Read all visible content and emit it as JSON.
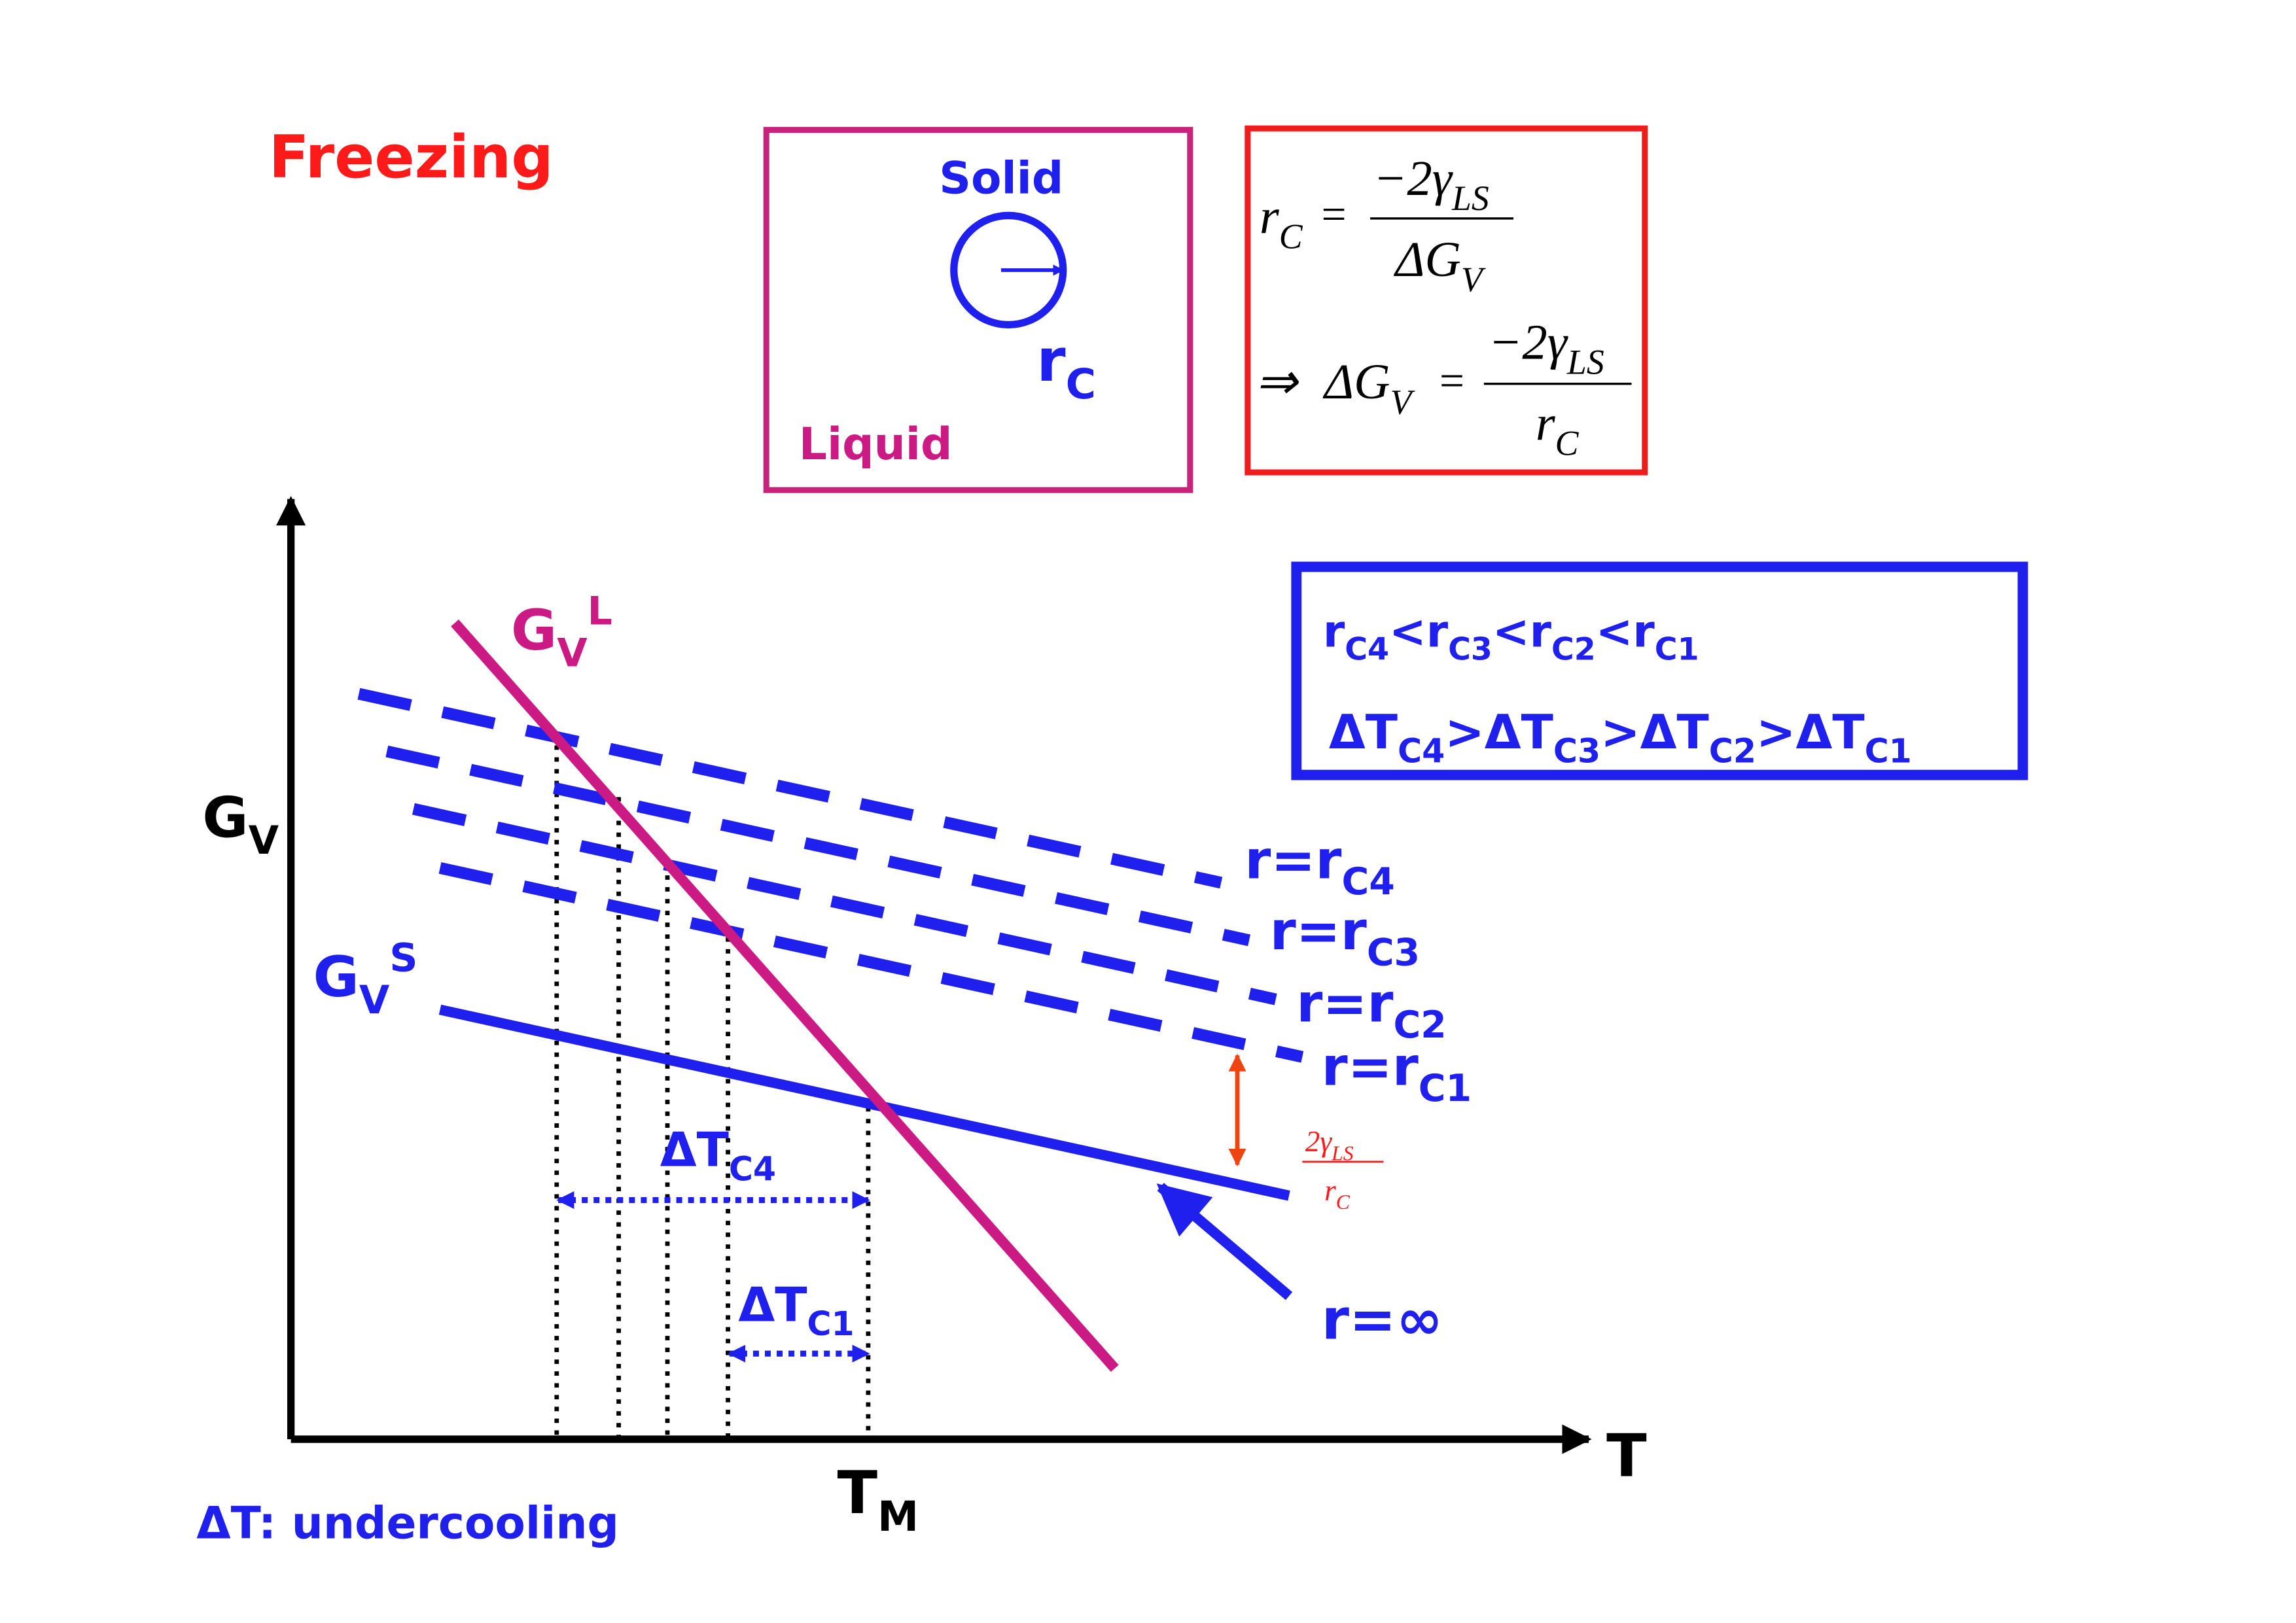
{
  "title": "Freezing",
  "nucleus_box": {
    "solid": "Solid",
    "radius": {
      "text": "r",
      "sub": "C"
    },
    "liquid": "Liquid"
  },
  "formula_box": {
    "formula1": {
      "lhs": {
        "text": "r",
        "sub": "C"
      },
      "equals": "=",
      "numerator": {
        "text": "−2γ",
        "sub": "LS"
      },
      "denominator": {
        "text": "ΔG",
        "sub": "V"
      }
    },
    "formula2": {
      "implies": "⇒",
      "lhs": {
        "text": "ΔG",
        "sub": "V"
      },
      "equals": "=",
      "numerator": {
        "text": "−2γ",
        "sub": "LS"
      },
      "denominator": {
        "text": "r",
        "sub": "C"
      }
    }
  },
  "relations": {
    "radius_order": {
      "items": [
        {
          "text": "r",
          "sub": "C4"
        },
        {
          "text": "r",
          "sub": "C3"
        },
        {
          "text": "r",
          "sub": "C2"
        },
        {
          "text": "r",
          "sub": "C1"
        }
      ],
      "separator": "<"
    },
    "undercooling_order": {
      "items": [
        {
          "text": "ΔT",
          "sub": "C4"
        },
        {
          "text": "ΔT",
          "sub": "C3"
        },
        {
          "text": "ΔT",
          "sub": "C2"
        },
        {
          "text": "ΔT",
          "sub": "C1"
        }
      ],
      "separator": ">"
    }
  },
  "diagram": {
    "y_label": {
      "text": "G",
      "sub": "V"
    },
    "x_label": "T",
    "melting_point": {
      "text": "T",
      "sub": "M"
    },
    "liquid_curve": {
      "text": "G",
      "sub": "V",
      "sup": "L"
    },
    "solid_curve": {
      "text": "G",
      "sub": "V",
      "sup": "S"
    },
    "radius_lines": [
      {
        "text": "r=r",
        "sub": "C4"
      },
      {
        "text": "r=r",
        "sub": "C3"
      },
      {
        "text": "r=r",
        "sub": "C2"
      },
      {
        "text": "r=r",
        "sub": "C1"
      }
    ],
    "delta_labels": [
      {
        "text": "ΔT",
        "sub": "C4"
      },
      {
        "text": "ΔT",
        "sub": "C1"
      }
    ],
    "gap_label": {
      "numerator": {
        "text": "2γ",
        "sub": "LS"
      },
      "denominator": {
        "text": "r",
        "sub": "C"
      }
    },
    "infinite_label": "r=∞"
  },
  "note": "ΔT: undercooling"
}
